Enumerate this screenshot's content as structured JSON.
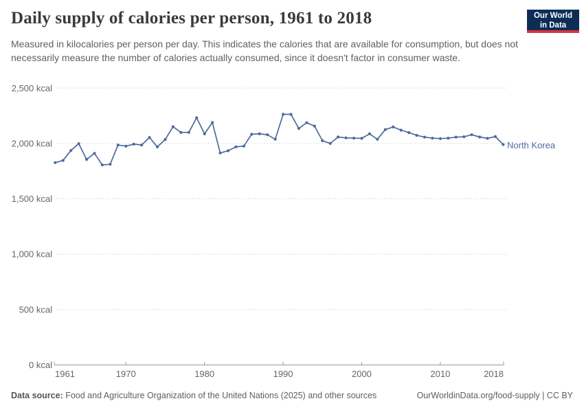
{
  "header": {
    "title": "Daily supply of calories per person, 1961 to 2018",
    "subtitle": "Measured in kilocalories per person per day. This indicates the calories that are available for consumption, but does not necessarily measure the number of calories actually consumed, since it doesn't factor in consumer waste.",
    "logo": {
      "line1": "Our World",
      "line2": "in Data",
      "bg_color": "#0d2d57",
      "stripe_color": "#d8353f"
    }
  },
  "chart_data": {
    "type": "line",
    "title": "Daily supply of calories per person, 1961 to 2018",
    "xlabel": "",
    "ylabel": "",
    "xlim": [
      1961,
      2018
    ],
    "ylim": [
      0,
      2500
    ],
    "grid": "horizontal-dashed",
    "legend_position": "end-of-line",
    "x_ticks": [
      1961,
      1970,
      1980,
      1990,
      2000,
      2010,
      2018
    ],
    "y_ticks": [
      0,
      500,
      1000,
      1500,
      2000,
      2500
    ],
    "y_tick_labels": [
      "0 kcal",
      "500 kcal",
      "1,000 kcal",
      "1,500 kcal",
      "2,000 kcal",
      "2,500 kcal"
    ],
    "series": [
      {
        "name": "North Korea",
        "color": "#4C6A9C",
        "x": [
          1961,
          1962,
          1963,
          1964,
          1965,
          1966,
          1967,
          1968,
          1969,
          1970,
          1971,
          1972,
          1973,
          1974,
          1975,
          1976,
          1977,
          1978,
          1979,
          1980,
          1981,
          1982,
          1983,
          1984,
          1985,
          1986,
          1987,
          1988,
          1989,
          1990,
          1991,
          1992,
          1993,
          1994,
          1995,
          1996,
          1997,
          1998,
          1999,
          2000,
          2001,
          2002,
          2003,
          2004,
          2005,
          2006,
          2007,
          2008,
          2009,
          2010,
          2011,
          2012,
          2013,
          2014,
          2015,
          2016,
          2017,
          2018
        ],
        "values": [
          1827,
          1846,
          1936,
          1998,
          1856,
          1911,
          1806,
          1812,
          1986,
          1976,
          1994,
          1986,
          2054,
          1969,
          2036,
          2151,
          2100,
          2100,
          2232,
          2087,
          2190,
          1914,
          1934,
          1969,
          1976,
          2083,
          2087,
          2079,
          2038,
          2263,
          2263,
          2135,
          2187,
          2157,
          2025,
          2000,
          2058,
          2050,
          2048,
          2046,
          2087,
          2038,
          2125,
          2149,
          2120,
          2098,
          2073,
          2057,
          2048,
          2044,
          2048,
          2057,
          2060,
          2079,
          2058,
          2046,
          2062,
          1990
        ]
      }
    ],
    "unit": "kcal"
  },
  "footer": {
    "source_label": "Data source:",
    "source_text": " Food and Agriculture Organization of the United Nations (2025) and other sources",
    "attribution": "OurWorldinData.org/food-supply | CC BY"
  }
}
